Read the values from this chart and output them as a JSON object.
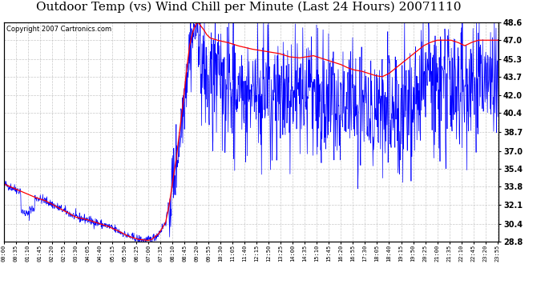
{
  "title": "Outdoor Temp (vs) Wind Chill per Minute (Last 24 Hours) 20071110",
  "copyright": "Copyright 2007 Cartronics.com",
  "yticks": [
    28.8,
    30.4,
    32.1,
    33.8,
    35.4,
    37.0,
    38.7,
    40.4,
    42.0,
    43.7,
    45.3,
    47.0,
    48.6
  ],
  "ymin": 28.8,
  "ymax": 48.6,
  "bg_color": "#ffffff",
  "plot_bg_color": "#ffffff",
  "grid_color": "#bbbbbb",
  "red_color": "#ff0000",
  "blue_color": "#0000ff",
  "title_fontsize": 11,
  "copyright_fontsize": 6,
  "x_tick_interval": 35,
  "total_minutes": 1440
}
